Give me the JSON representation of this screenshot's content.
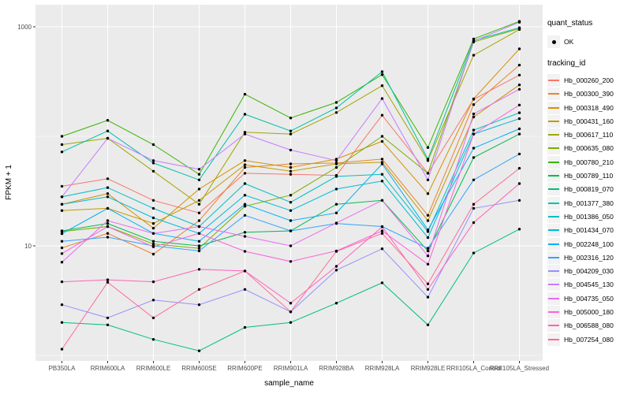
{
  "chart_data": {
    "type": "line",
    "title": "",
    "xlabel": "sample_name",
    "ylabel": "FPKM + 1",
    "y_scale": "log10",
    "ylim": [
      0.89,
      1590
    ],
    "grid": true,
    "legend_position": "right",
    "y_ticks": [
      {
        "value": 1000,
        "label": "1000"
      },
      {
        "value": 10,
        "label": "10"
      }
    ],
    "y_gridlines_major": [
      10,
      1000
    ],
    "y_gridlines_minor": [
      1,
      100
    ],
    "categories": [
      "PB350LA",
      "RRIM600LA",
      "RRIM600LE",
      "RRIM600SE",
      "RRIM600PE",
      "RRIM901LA",
      "RRIM928BA",
      "RRIM928LA",
      "RRIM928LE",
      "RRII105LA_Control",
      "RRII105LA_Stressed"
    ],
    "series": [
      {
        "name": "Hb_000260_200",
        "color": "#F8766D",
        "values": [
          35,
          41,
          26,
          20,
          46,
          45,
          44,
          156,
          46,
          218,
          362
        ]
      },
      {
        "name": "Hb_000300_390",
        "color": "#EA8331",
        "values": [
          9.6,
          13,
          8.4,
          17,
          52,
          56,
          57,
          62,
          19,
          195,
          447
        ]
      },
      {
        "name": "Hb_000318_490",
        "color": "#D89000",
        "values": [
          24,
          30,
          14.5,
          33,
          60,
          52,
          62,
          90,
          30,
          220,
          629
        ]
      },
      {
        "name": "Hb_000431_160",
        "color": "#C09B00",
        "values": [
          21,
          22,
          16,
          26,
          55,
          48,
          56,
          58,
          17,
          150,
          295
        ]
      },
      {
        "name": "Hb_000617_110",
        "color": "#A3A500",
        "values": [
          84,
          96,
          48,
          24,
          109,
          105,
          165,
          290,
          60,
          550,
          946
        ]
      },
      {
        "name": "Hb_000635_080",
        "color": "#7CAE00",
        "values": [
          13.5,
          15,
          10.4,
          9.5,
          23,
          29,
          52,
          100,
          46,
          726,
          962
        ]
      },
      {
        "name": "Hb_000780_210",
        "color": "#39B600",
        "values": [
          100,
          140,
          84,
          45,
          242,
          147,
          204,
          366,
          79,
          775,
          1122
        ]
      },
      {
        "name": "Hb_000789_110",
        "color": "#00BB4E",
        "values": [
          13.7,
          16,
          11,
          10,
          13.3,
          13.7,
          24,
          26,
          9,
          64,
          105
        ]
      },
      {
        "name": "Hb_000819_070",
        "color": "#00BF7D",
        "values": [
          2.0,
          1.9,
          1.4,
          1.1,
          1.8,
          2.0,
          3.0,
          4.6,
          1.9,
          8.6,
          14.2
        ]
      },
      {
        "name": "Hb_001377_380",
        "color": "#00C1A3",
        "values": [
          72,
          112,
          57,
          40,
          159,
          112,
          182,
          389,
          62,
          750,
          980
        ]
      },
      {
        "name": "Hb_001386_050",
        "color": "#00BFC4",
        "values": [
          28,
          34,
          22,
          15,
          37,
          25,
          43,
          45,
          13.5,
          114,
          164
        ]
      },
      {
        "name": "Hb_001434_070",
        "color": "#00BBDA",
        "values": [
          24,
          28,
          18,
          13,
          29,
          21,
          33,
          39,
          11.9,
          105,
          145
        ]
      },
      {
        "name": "Hb_002248_100",
        "color": "#00B0F6",
        "values": [
          12.9,
          22,
          13,
          11,
          24,
          17,
          20,
          56,
          14,
          78,
          117
        ]
      },
      {
        "name": "Hb_002316_120",
        "color": "#35A2FF",
        "values": [
          11,
          12,
          10,
          9,
          19,
          13.7,
          16,
          15,
          9.5,
          40,
          69
        ]
      },
      {
        "name": "Hb_004209_030",
        "color": "#9590FF",
        "values": [
          2.9,
          2.2,
          3.2,
          2.9,
          4.0,
          2.5,
          6.0,
          9.4,
          3.4,
          22,
          26
        ]
      },
      {
        "name": "Hb_004545_130",
        "color": "#C77CFF",
        "values": [
          28,
          96,
          60,
          50,
          105,
          75,
          60,
          221,
          40,
          740,
          1100
        ]
      },
      {
        "name": "Hb_004735_050",
        "color": "#E76BF3",
        "values": [
          7.1,
          17,
          13,
          15,
          12.2,
          10,
          16.2,
          26,
          8.1,
          160,
          269
        ]
      },
      {
        "name": "Hb_005000_180",
        "color": "#FA62DB",
        "values": [
          8.5,
          15,
          9.8,
          13,
          8.9,
          7.2,
          9,
          13.7,
          6.8,
          105,
          193
        ]
      },
      {
        "name": "Hb_006588_080",
        "color": "#FF62BC",
        "values": [
          4.7,
          4.9,
          4.7,
          6.1,
          5.9,
          3.0,
          6.5,
          14.9,
          4.0,
          16.3,
          37
        ]
      },
      {
        "name": "Hb_007254_080",
        "color": "#FF6A98",
        "values": [
          1.14,
          4.65,
          2.2,
          4.0,
          5.9,
          2.5,
          8.9,
          13,
          4.5,
          24,
          51
        ]
      }
    ]
  },
  "legend": {
    "quant_status_title": "quant_status",
    "quant_status_items": [
      {
        "label": "OK",
        "shape": "point",
        "color": "#000000"
      }
    ],
    "tracking_id_title": "tracking_id"
  },
  "style": {
    "panel_bg": "#EBEBEB",
    "grid_color": "#FFFFFF",
    "tick_text_color": "#4D4D4D",
    "tick_mark_color": "#333333",
    "point_color": "#000000"
  }
}
